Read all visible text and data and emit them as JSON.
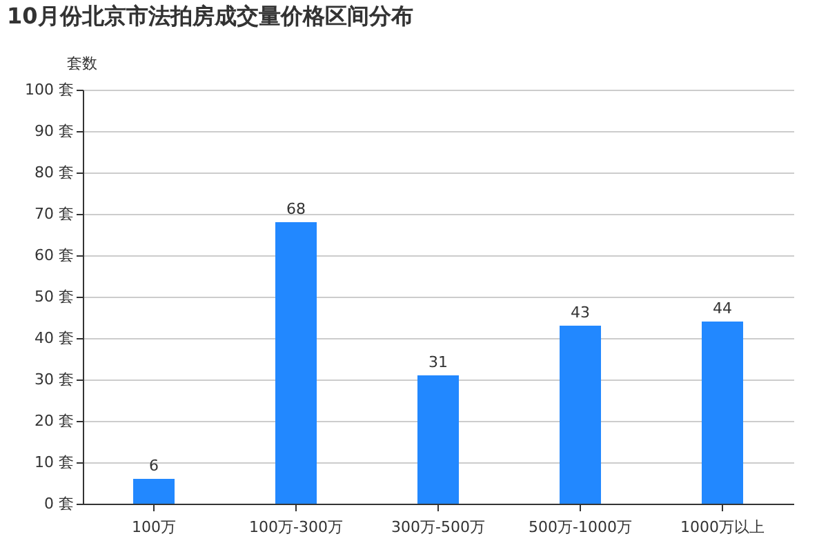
{
  "chart_data": {
    "type": "bar",
    "title": "10月份北京市法拍房成交量价格区间分布",
    "ylabel": "套数",
    "categories": [
      "100万",
      "100万-300万",
      "300万-500万",
      "500万-1000万",
      "1000万以上"
    ],
    "values": [
      6,
      68,
      31,
      43,
      44
    ],
    "color": "#2288ff",
    "ylim": [
      0,
      100
    ],
    "yticks": [
      {
        "value": 0,
        "label": "0 套"
      },
      {
        "value": 10,
        "label": "10 套"
      },
      {
        "value": 20,
        "label": "20 套"
      },
      {
        "value": 30,
        "label": "30 套"
      },
      {
        "value": 40,
        "label": "40 套"
      },
      {
        "value": 50,
        "label": "50 套"
      },
      {
        "value": 60,
        "label": "60 套"
      },
      {
        "value": 70,
        "label": "70 套"
      },
      {
        "value": 80,
        "label": "80 套"
      },
      {
        "value": 90,
        "label": "90 套"
      },
      {
        "value": 100,
        "label": "100 套"
      }
    ],
    "grid": "y",
    "data_labels": true
  }
}
